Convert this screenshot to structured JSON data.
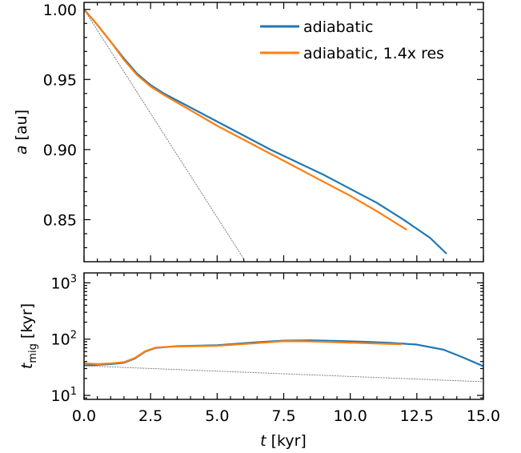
{
  "chart_data": [
    {
      "type": "line",
      "panel": "top",
      "ylabel_var": "a",
      "ylabel_unit": "[au]",
      "xlim": [
        0,
        15
      ],
      "ylim": [
        0.82,
        1.005
      ],
      "yticks": [
        0.85,
        0.9,
        0.95,
        1.0
      ],
      "ytick_labels": [
        "0.85",
        "0.90",
        "0.95",
        "1.00"
      ],
      "grid": false,
      "legend_position": "top-right",
      "series": [
        {
          "name": "adiabatic",
          "color": "#1f77b4",
          "x": [
            0,
            0.5,
            1.0,
            1.5,
            2.0,
            2.5,
            3.0,
            4.0,
            5.0,
            6.0,
            7.0,
            8.0,
            9.0,
            10.0,
            11.0,
            12.0,
            13.0,
            13.6
          ],
          "y": [
            1.0,
            0.989,
            0.977,
            0.965,
            0.954,
            0.946,
            0.94,
            0.93,
            0.92,
            0.91,
            0.9,
            0.891,
            0.882,
            0.872,
            0.862,
            0.85,
            0.837,
            0.826
          ]
        },
        {
          "name": "adiabatic, 1.4x res",
          "color": "#ff7f0e",
          "x": [
            0,
            0.5,
            1.0,
            1.5,
            2.0,
            2.5,
            3.0,
            4.0,
            5.0,
            6.0,
            7.0,
            8.0,
            9.0,
            10.0,
            11.0,
            12.1
          ],
          "y": [
            1.0,
            0.989,
            0.977,
            0.964,
            0.953,
            0.945,
            0.939,
            0.928,
            0.917,
            0.907,
            0.897,
            0.887,
            0.877,
            0.867,
            0.856,
            0.843
          ]
        },
        {
          "name": "",
          "color": "#7f7f7f",
          "style": "dotted",
          "x": [
            0,
            6.0
          ],
          "y": [
            1.0,
            0.822
          ]
        }
      ]
    },
    {
      "type": "line",
      "panel": "bottom",
      "ylabel_var": "t",
      "ylabel_sub": "mig",
      "ylabel_unit": "[kyr]",
      "xlabel_var": "t",
      "xlabel_unit": "[kyr]",
      "yscale": "log",
      "xlim": [
        0,
        15
      ],
      "ylim": [
        8.5,
        1500
      ],
      "xticks": [
        0,
        2.5,
        5.0,
        7.5,
        10.0,
        12.5,
        15.0
      ],
      "xtick_labels": [
        "0.0",
        "2.5",
        "5.0",
        "7.5",
        "10.0",
        "12.5",
        "15.0"
      ],
      "yticks": [
        10,
        100,
        1000
      ],
      "ytick_base": [
        "10",
        "10",
        "10"
      ],
      "ytick_exp": [
        "1",
        "2",
        "3"
      ],
      "grid": false,
      "series": [
        {
          "name": "adiabatic",
          "color": "#1f77b4",
          "x": [
            0,
            0.5,
            1.0,
            1.5,
            1.9,
            2.3,
            2.7,
            3.5,
            5.0,
            6.5,
            7.5,
            8.5,
            9.5,
            10.5,
            11.5,
            12.5,
            13.5,
            14.2,
            15.0
          ],
          "y": [
            34,
            35,
            36,
            38,
            45,
            60,
            70,
            75,
            78,
            88,
            94,
            95,
            93,
            90,
            86,
            80,
            65,
            48,
            33
          ]
        },
        {
          "name": "adiabatic, 1.4x res",
          "color": "#ff7f0e",
          "x": [
            0,
            0.5,
            1.0,
            1.5,
            1.9,
            2.3,
            2.7,
            3.5,
            5.0,
            6.5,
            7.5,
            8.5,
            9.5,
            10.5,
            11.5,
            11.9
          ],
          "y": [
            37,
            36,
            37,
            39,
            46,
            61,
            71,
            74,
            76,
            85,
            92,
            91,
            88,
            85,
            82,
            81
          ]
        },
        {
          "name": "",
          "color": "#7f7f7f",
          "style": "dotted",
          "x": [
            0,
            15
          ],
          "y": [
            33.5,
            17.5
          ]
        }
      ]
    }
  ]
}
